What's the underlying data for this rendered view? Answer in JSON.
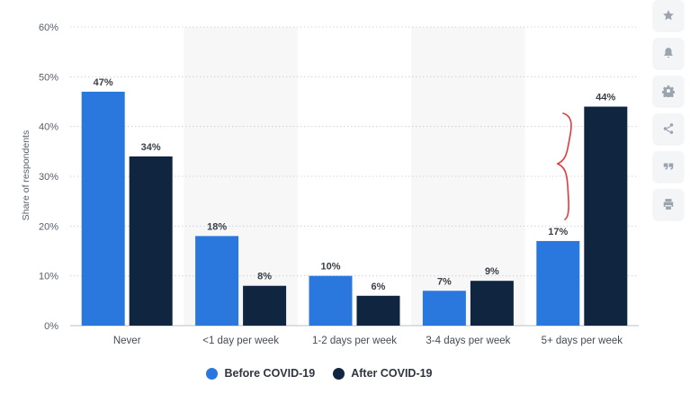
{
  "chart_data": {
    "type": "bar",
    "categories": [
      "Never",
      "<1 day per week",
      "1-2 days per week",
      "3-4 days per week",
      "5+ days per week"
    ],
    "series": [
      {
        "name": "Before COVID-19",
        "values": [
          47,
          18,
          10,
          7,
          17
        ],
        "labels": [
          "47%",
          "18%",
          "10%",
          "7%",
          "17%"
        ],
        "color": "#2a77de"
      },
      {
        "name": "After COVID-19",
        "values": [
          34,
          8,
          6,
          9,
          44
        ],
        "labels": [
          "34%",
          "8%",
          "6%",
          "9%",
          "44%"
        ],
        "color": "#10253f"
      }
    ],
    "ylabel": "Share of respondents",
    "ylim": [
      0,
      60
    ],
    "yticks": [
      "0%",
      "10%",
      "20%",
      "30%",
      "40%",
      "50%",
      "60%"
    ],
    "grid": true,
    "legend": "bottom-center",
    "annotation": "red curly brace beside 5+ days per week",
    "colors": {
      "band": "#f7f7f8",
      "grid": "#c8ccd2",
      "annotation": "#e03a3a"
    }
  },
  "toolbar": {
    "buttons": [
      "star-icon",
      "bell-icon",
      "gear-icon",
      "share-icon",
      "quote-icon",
      "print-icon"
    ]
  }
}
